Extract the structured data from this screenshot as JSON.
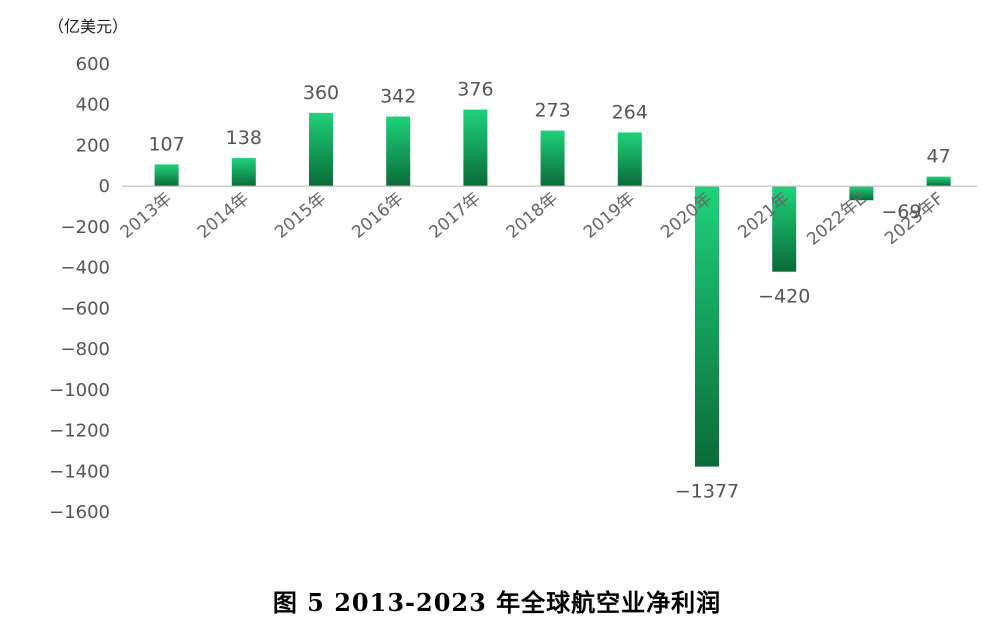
{
  "caption": "图 5 2013-2023 年全球航空业净利润",
  "chart_data": {
    "type": "bar",
    "title": "",
    "unit_label": "（亿美元）",
    "xlabel": "",
    "ylabel": "",
    "categories": [
      "2013年",
      "2014年",
      "2015年",
      "2016年",
      "2017年",
      "2018年",
      "2019年",
      "2020年",
      "2021年",
      "2022年E",
      "2023年F"
    ],
    "values": [
      107,
      138,
      360,
      342,
      376,
      273,
      264,
      -1377,
      -420,
      -69,
      47
    ],
    "data_labels": [
      "107",
      "138",
      "360",
      "342",
      "376",
      "273",
      "264",
      "−1377",
      "−420",
      "−69",
      "47"
    ],
    "ylim": [
      -1600,
      600
    ],
    "yticks": [
      600,
      400,
      200,
      0,
      -200,
      -400,
      -600,
      -800,
      -1000,
      -1200,
      -1400,
      -1600
    ],
    "ytick_labels": [
      "600",
      "400",
      "200",
      "0",
      "−200",
      "−400",
      "−600",
      "−800",
      "−1000",
      "−1200",
      "−1400",
      "−1600"
    ],
    "grid": false,
    "legend": "none",
    "colors": {
      "bar_light": "#1fd27a",
      "bar_dark": "#0b6b38",
      "axis": "#bfbfbf",
      "tick_text": "#555555",
      "label_text": "#555555"
    }
  }
}
